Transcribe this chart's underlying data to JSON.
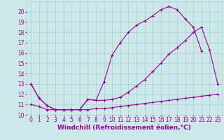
{
  "bg_color": "#cce8e8",
  "grid_color": "#aacccc",
  "line_color": "#990099",
  "line_width": 0.8,
  "marker": "+",
  "marker_size": 3,
  "marker_edge_width": 0.8,
  "xlabel": "Windchill (Refroidissement éolien,°C)",
  "xlabel_fontsize": 6.5,
  "xlim": [
    -0.5,
    23.5
  ],
  "ylim": [
    10,
    21
  ],
  "xticks": [
    0,
    1,
    2,
    3,
    4,
    5,
    6,
    7,
    8,
    9,
    10,
    11,
    12,
    13,
    14,
    15,
    16,
    17,
    18,
    19,
    20,
    21,
    22,
    23
  ],
  "yticks": [
    10,
    11,
    12,
    13,
    14,
    15,
    16,
    17,
    18,
    19,
    20
  ],
  "tick_fontsize": 5.5,
  "series": [
    {
      "x": [
        0,
        1,
        2,
        3,
        4,
        5,
        6,
        7,
        8,
        9,
        10,
        11,
        12,
        13,
        14,
        15,
        16,
        17,
        18,
        19,
        20,
        21
      ],
      "y": [
        13,
        11.6,
        10.9,
        10.5,
        10.5,
        10.5,
        10.5,
        11.5,
        11.4,
        13.2,
        15.8,
        17.0,
        18.0,
        18.7,
        19.1,
        19.6,
        20.2,
        20.5,
        20.2,
        19.3,
        18.5,
        16.2
      ]
    },
    {
      "x": [
        0,
        1,
        2,
        3,
        4,
        5,
        6,
        7,
        8,
        9,
        10,
        11,
        12,
        13,
        14,
        15,
        16,
        17,
        18,
        19,
        20,
        21,
        22,
        23
      ],
      "y": [
        13,
        11.6,
        10.9,
        10.5,
        10.5,
        10.5,
        10.5,
        11.5,
        11.4,
        11.4,
        11.5,
        11.7,
        12.2,
        12.8,
        13.4,
        14.2,
        15.0,
        15.9,
        16.5,
        17.2,
        18.0,
        18.5,
        16.3,
        13.0
      ]
    },
    {
      "x": [
        0,
        1,
        2,
        3,
        4,
        5,
        6,
        7,
        8,
        9,
        10,
        11,
        12,
        13,
        14,
        15,
        16,
        17,
        18,
        19,
        20,
        21,
        22,
        23
      ],
      "y": [
        11.0,
        10.8,
        10.5,
        10.5,
        10.5,
        10.5,
        10.5,
        10.5,
        10.6,
        10.6,
        10.7,
        10.8,
        10.9,
        11.0,
        11.1,
        11.2,
        11.3,
        11.4,
        11.5,
        11.6,
        11.7,
        11.8,
        11.9,
        12.0
      ]
    }
  ]
}
